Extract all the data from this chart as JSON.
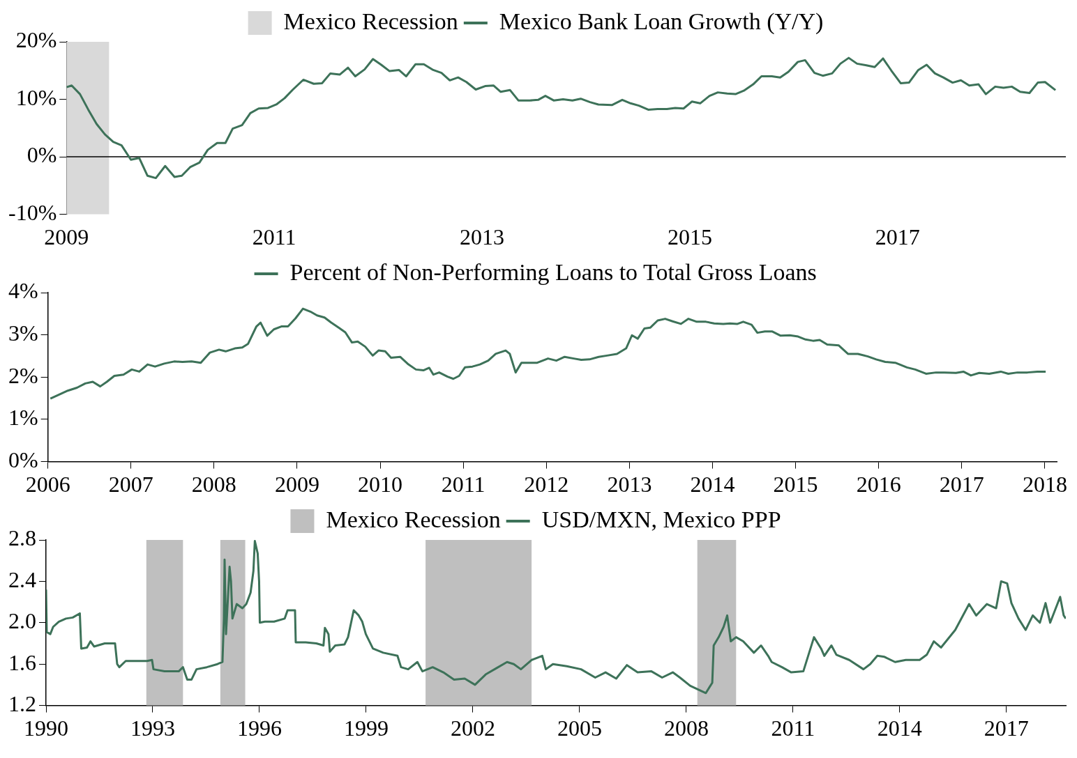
{
  "chart_data": [
    {
      "type": "line",
      "xlim": [
        2009,
        2018.62
      ],
      "xticks": [
        2009,
        2011,
        2013,
        2015,
        2017
      ],
      "ylim": [
        -10,
        20
      ],
      "yticks": [
        {
          "value": -10,
          "label": "-10%"
        },
        {
          "value": 0,
          "label": "0%"
        },
        {
          "value": 10,
          "label": "10%"
        },
        {
          "value": 20,
          "label": "20%"
        }
      ],
      "legend": "top",
      "bands": [
        {
          "axis": "x",
          "from": 2009.0,
          "to": 2009.41,
          "label": "Mexico Recession",
          "color": "#d9d9d9"
        }
      ],
      "ref_lines": [
        {
          "axis": "y",
          "value": 0,
          "color": "#000000"
        }
      ],
      "series": [
        {
          "name": "Mexico Bank Loan Growth (Y/Y)",
          "color": "#3d7259",
          "x": [
            2009.0,
            2009.05,
            2009.13,
            2009.21,
            2009.29,
            2009.37,
            2009.45,
            2009.53,
            2009.62,
            2009.7,
            2009.78,
            2009.86,
            2009.95,
            2010.04,
            2010.11,
            2010.19,
            2010.28,
            2010.36,
            2010.45,
            2010.53,
            2010.6,
            2010.69,
            2010.77,
            2010.85,
            2010.94,
            2011.02,
            2011.1,
            2011.18,
            2011.28,
            2011.38,
            2011.46,
            2011.54,
            2011.63,
            2011.71,
            2011.78,
            2011.87,
            2011.95,
            2012.03,
            2012.11,
            2012.2,
            2012.27,
            2012.36,
            2012.44,
            2012.53,
            2012.61,
            2012.69,
            2012.77,
            2012.85,
            2012.94,
            2013.03,
            2013.11,
            2013.18,
            2013.27,
            2013.35,
            2013.46,
            2013.54,
            2013.61,
            2013.69,
            2013.78,
            2013.87,
            2013.95,
            2014.04,
            2014.12,
            2014.25,
            2014.35,
            2014.43,
            2014.51,
            2014.6,
            2014.69,
            2014.78,
            2014.86,
            2014.94,
            2015.02,
            2015.1,
            2015.19,
            2015.27,
            2015.36,
            2015.44,
            2015.52,
            2015.61,
            2015.69,
            2015.79,
            2015.87,
            2015.95,
            2016.04,
            2016.11,
            2016.2,
            2016.28,
            2016.37,
            2016.45,
            2016.53,
            2016.61,
            2016.7,
            2016.78,
            2016.86,
            2016.94,
            2017.03,
            2017.11,
            2017.2,
            2017.28,
            2017.36,
            2017.44,
            2017.53,
            2017.61,
            2017.69,
            2017.78,
            2017.85,
            2017.94,
            2018.02,
            2018.1,
            2018.18,
            2018.27,
            2018.35,
            2018.42,
            2018.52
          ],
          "values": [
            12.1,
            12.4,
            10.9,
            8.2,
            5.7,
            3.9,
            2.6,
            2.0,
            -0.5,
            -0.2,
            -3.3,
            -3.7,
            -1.6,
            -3.5,
            -3.3,
            -1.8,
            -1.0,
            1.2,
            2.4,
            2.4,
            4.9,
            5.5,
            7.6,
            8.4,
            8.5,
            9.1,
            10.2,
            11.7,
            13.4,
            12.7,
            12.8,
            14.5,
            14.3,
            15.5,
            14.0,
            15.2,
            17.0,
            16.0,
            14.9,
            15.1,
            14.0,
            16.1,
            16.1,
            15.1,
            14.6,
            13.3,
            13.8,
            13.0,
            11.7,
            12.3,
            12.4,
            11.3,
            11.6,
            9.8,
            9.8,
            9.9,
            10.6,
            9.8,
            10.0,
            9.8,
            10.1,
            9.5,
            9.1,
            9.0,
            9.9,
            9.3,
            8.9,
            8.2,
            8.3,
            8.3,
            8.5,
            8.4,
            9.6,
            9.3,
            10.6,
            11.2,
            11.0,
            10.9,
            11.5,
            12.6,
            14.0,
            14.0,
            13.8,
            14.8,
            16.5,
            16.8,
            14.6,
            14.1,
            14.5,
            16.2,
            17.2,
            16.2,
            15.9,
            15.6,
            17.1,
            15.0,
            12.8,
            12.9,
            15.1,
            16.0,
            14.5,
            13.8,
            12.9,
            13.3,
            12.4,
            12.6,
            10.9,
            12.2,
            12.0,
            12.2,
            11.3,
            11.1,
            12.9,
            13.0,
            11.6
          ]
        }
      ]
    },
    {
      "type": "line",
      "xlim": [
        2006,
        2018.15
      ],
      "xticks": [
        2006,
        2007,
        2008,
        2009,
        2010,
        2011,
        2012,
        2013,
        2014,
        2015,
        2016,
        2017,
        2018
      ],
      "ylim": [
        0,
        4
      ],
      "yticks": [
        {
          "value": 0,
          "label": "0%"
        },
        {
          "value": 1,
          "label": "1%"
        },
        {
          "value": 2,
          "label": "2%"
        },
        {
          "value": 3,
          "label": "3%"
        },
        {
          "value": 4,
          "label": "4%"
        }
      ],
      "legend": "top",
      "series": [
        {
          "name": "Percent of Non-Performing Loans to Total Gross Loans",
          "color": "#3d7259",
          "x": [
            2006.03,
            2006.14,
            2006.24,
            2006.35,
            2006.45,
            2006.54,
            2006.63,
            2006.71,
            2006.8,
            2006.91,
            2007.01,
            2007.1,
            2007.2,
            2007.29,
            2007.4,
            2007.52,
            2007.62,
            2007.73,
            2007.84,
            2007.95,
            2008.06,
            2008.14,
            2008.25,
            2008.34,
            2008.41,
            2008.51,
            2008.56,
            2008.64,
            2008.72,
            2008.81,
            2008.89,
            2008.98,
            2009.07,
            2009.16,
            2009.24,
            2009.33,
            2009.41,
            2009.5,
            2009.58,
            2009.66,
            2009.73,
            2009.82,
            2009.91,
            2009.98,
            2010.06,
            2010.13,
            2010.24,
            2010.34,
            2010.43,
            2010.52,
            2010.59,
            2010.64,
            2010.71,
            2010.81,
            2010.88,
            2010.95,
            2011.02,
            2011.11,
            2011.2,
            2011.3,
            2011.39,
            2011.51,
            2011.56,
            2011.63,
            2011.7,
            2011.81,
            2011.89,
            2012.02,
            2012.12,
            2012.22,
            2012.33,
            2012.42,
            2012.52,
            2012.63,
            2012.73,
            2012.85,
            2012.96,
            2013.03,
            2013.1,
            2013.18,
            2013.25,
            2013.34,
            2013.43,
            2013.52,
            2013.62,
            2013.71,
            2013.81,
            2013.92,
            2014.02,
            2014.13,
            2014.21,
            2014.3,
            2014.37,
            2014.47,
            2014.54,
            2014.63,
            2014.72,
            2014.82,
            2014.93,
            2015.03,
            2015.12,
            2015.21,
            2015.29,
            2015.38,
            2015.52,
            2015.63,
            2015.75,
            2015.87,
            2015.97,
            2016.08,
            2016.2,
            2016.34,
            2016.44,
            2016.57,
            2016.69,
            2016.79,
            2016.93,
            2017.02,
            2017.11,
            2017.21,
            2017.33,
            2017.47,
            2017.56,
            2017.67,
            2017.79,
            2017.91,
            2018.01
          ],
          "values": [
            1.49,
            1.59,
            1.68,
            1.75,
            1.85,
            1.89,
            1.78,
            1.89,
            2.03,
            2.06,
            2.18,
            2.13,
            2.3,
            2.25,
            2.32,
            2.37,
            2.36,
            2.37,
            2.34,
            2.58,
            2.65,
            2.61,
            2.68,
            2.7,
            2.79,
            3.2,
            3.29,
            2.98,
            3.13,
            3.2,
            3.2,
            3.39,
            3.62,
            3.55,
            3.46,
            3.41,
            3.29,
            3.17,
            3.06,
            2.82,
            2.84,
            2.72,
            2.51,
            2.63,
            2.61,
            2.46,
            2.48,
            2.3,
            2.18,
            2.16,
            2.22,
            2.06,
            2.11,
            2.01,
            1.96,
            2.03,
            2.23,
            2.25,
            2.3,
            2.39,
            2.55,
            2.63,
            2.55,
            2.11,
            2.34,
            2.34,
            2.34,
            2.44,
            2.39,
            2.48,
            2.44,
            2.41,
            2.42,
            2.48,
            2.51,
            2.55,
            2.68,
            2.99,
            2.91,
            3.15,
            3.17,
            3.34,
            3.38,
            3.32,
            3.26,
            3.38,
            3.31,
            3.31,
            3.27,
            3.26,
            3.27,
            3.26,
            3.31,
            3.24,
            3.05,
            3.08,
            3.08,
            2.98,
            2.99,
            2.96,
            2.89,
            2.86,
            2.88,
            2.77,
            2.75,
            2.55,
            2.55,
            2.49,
            2.42,
            2.36,
            2.34,
            2.23,
            2.18,
            2.08,
            2.11,
            2.11,
            2.1,
            2.13,
            2.04,
            2.1,
            2.08,
            2.13,
            2.08,
            2.11,
            2.11,
            2.13,
            2.13
          ]
        }
      ]
    },
    {
      "type": "line",
      "xlim": [
        1990,
        2018.67
      ],
      "xticks": [
        1990,
        1993,
        1996,
        1999,
        2002,
        2005,
        2008,
        2011,
        2014,
        2017
      ],
      "ylim": [
        1.2,
        2.8
      ],
      "yticks": [
        1.2,
        1.6,
        {
          "value": 2,
          "label": "2.0"
        },
        2.4,
        2.8
      ],
      "legend": "top",
      "bands": [
        {
          "axis": "x",
          "from": 1992.82,
          "to": 1993.85,
          "label": "Mexico Recession",
          "color": "#bfbfbf"
        },
        {
          "axis": "x",
          "from": 1994.9,
          "to": 1995.6,
          "color": "#bfbfbf"
        },
        {
          "axis": "x",
          "from": 2000.67,
          "to": 2003.65,
          "color": "#bfbfbf"
        },
        {
          "axis": "x",
          "from": 2008.31,
          "to": 2009.4,
          "color": "#bfbfbf"
        }
      ],
      "series": [
        {
          "name": "USD/MXN, Mexico PPP",
          "color": "#3d7259",
          "x": [
            1990.0,
            1990.02,
            1990.12,
            1990.2,
            1990.36,
            1990.56,
            1990.75,
            1990.95,
            1990.99,
            1991.15,
            1991.25,
            1991.35,
            1991.65,
            1991.94,
            1992.0,
            1992.06,
            1992.24,
            1992.54,
            1992.84,
            1992.98,
            1993.02,
            1993.33,
            1993.73,
            1993.85,
            1993.97,
            1994.09,
            1994.23,
            1994.52,
            1994.82,
            1994.96,
            1995.0,
            1995.02,
            1995.06,
            1995.16,
            1995.2,
            1995.24,
            1995.36,
            1995.52,
            1995.63,
            1995.75,
            1995.83,
            1995.87,
            1995.95,
            1995.99,
            1996.01,
            1996.15,
            1996.41,
            1996.71,
            1996.79,
            1996.85,
            1997.0,
            1997.02,
            1997.3,
            1997.6,
            1997.8,
            1997.84,
            1997.94,
            1997.98,
            1998.13,
            1998.39,
            1998.49,
            1998.65,
            1998.79,
            1998.89,
            1998.99,
            1999.19,
            1999.48,
            1999.88,
            1999.98,
            2000.18,
            2000.44,
            2000.58,
            2000.87,
            2001.17,
            2001.47,
            2001.77,
            2002.06,
            2002.36,
            2002.66,
            2002.96,
            2003.15,
            2003.35,
            2003.65,
            2003.95,
            2004.05,
            2004.25,
            2004.64,
            2005.04,
            2005.44,
            2005.73,
            2006.03,
            2006.33,
            2006.63,
            2007.02,
            2007.32,
            2007.62,
            2007.82,
            2008.11,
            2008.55,
            2008.73,
            2008.77,
            2008.91,
            2009.05,
            2009.15,
            2009.25,
            2009.4,
            2009.6,
            2009.9,
            2010.1,
            2010.3,
            2010.4,
            2010.69,
            2010.95,
            2011.29,
            2011.59,
            2011.79,
            2011.88,
            2012.08,
            2012.22,
            2012.58,
            2012.98,
            2013.17,
            2013.37,
            2013.57,
            2013.87,
            2014.17,
            2014.56,
            2014.76,
            2014.96,
            2015.16,
            2015.56,
            2015.95,
            2016.15,
            2016.45,
            2016.71,
            2016.85,
            2017.02,
            2017.14,
            2017.34,
            2017.54,
            2017.74,
            2017.94,
            2018.1,
            2018.23,
            2018.51,
            2018.61,
            2018.67
          ],
          "values": [
            2.32,
            1.91,
            1.89,
            1.96,
            2.01,
            2.04,
            2.05,
            2.09,
            1.75,
            1.76,
            1.82,
            1.77,
            1.8,
            1.8,
            1.6,
            1.57,
            1.63,
            1.63,
            1.63,
            1.64,
            1.55,
            1.53,
            1.53,
            1.57,
            1.45,
            1.45,
            1.55,
            1.57,
            1.6,
            1.62,
            2.04,
            2.61,
            1.89,
            2.54,
            2.4,
            2.04,
            2.18,
            2.14,
            2.18,
            2.29,
            2.5,
            2.79,
            2.67,
            2.4,
            2.0,
            2.01,
            2.01,
            2.04,
            2.12,
            2.12,
            2.12,
            1.81,
            1.81,
            1.8,
            1.78,
            1.95,
            1.89,
            1.72,
            1.78,
            1.79,
            1.86,
            2.12,
            2.07,
            2.01,
            1.89,
            1.75,
            1.71,
            1.68,
            1.57,
            1.55,
            1.62,
            1.53,
            1.57,
            1.52,
            1.45,
            1.46,
            1.4,
            1.5,
            1.56,
            1.62,
            1.6,
            1.55,
            1.64,
            1.68,
            1.55,
            1.6,
            1.58,
            1.55,
            1.47,
            1.52,
            1.46,
            1.59,
            1.52,
            1.53,
            1.47,
            1.52,
            1.47,
            1.39,
            1.32,
            1.42,
            1.78,
            1.86,
            1.96,
            2.07,
            1.82,
            1.86,
            1.82,
            1.71,
            1.78,
            1.68,
            1.62,
            1.57,
            1.52,
            1.53,
            1.86,
            1.75,
            1.68,
            1.78,
            1.69,
            1.64,
            1.55,
            1.6,
            1.68,
            1.67,
            1.62,
            1.64,
            1.64,
            1.69,
            1.82,
            1.76,
            1.93,
            2.18,
            2.07,
            2.18,
            2.14,
            2.4,
            2.38,
            2.19,
            2.04,
            1.93,
            2.07,
            2.0,
            2.19,
            2.0,
            2.25,
            2.07,
            2.04
          ]
        }
      ]
    }
  ]
}
